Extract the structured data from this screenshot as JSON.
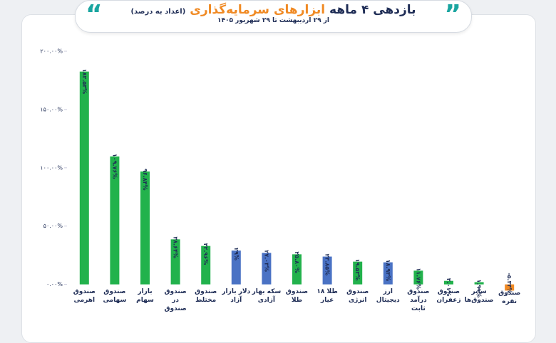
{
  "chart_data": {
    "type": "bar",
    "title": "بازدهی ۴ ماهه",
    "title_highlight": "ابزارهای سرمایه‌گذاری",
    "title_note": "(اعداد به درصد)",
    "subtitle": "از ۲۹ اردیبهشت تا ۲۹ شهریور ۱۴۰۵",
    "categories": [
      "صندوق اهرمی",
      "صندوق سهامی",
      "بازار سهام",
      "صندوق در صندوق",
      "صندوق مختلط",
      "دلار بازار آزاد",
      "سکه بهار آزادی",
      "صندوق طلا",
      "طلا ۱۸ عیار",
      "صندوق انرژی",
      "ارز دیجیتال",
      "صندوق درآمد ثابت",
      "صندوق زعفران",
      "سایر صندوق‌ها",
      "صندوق نقره"
    ],
    "values": [
      182.54,
      109.76,
      96.84,
      38.64,
      32.96,
      29,
      27.03,
      25.8,
      23.85,
      19.52,
      18.93,
      11.76,
      3.01,
      1.91,
      -5.34
    ],
    "value_labels": [
      "۱۸۲.۵۴%",
      "۱۰۹.۷۶%",
      "۹۶.۸۴%",
      "۳۸.۶۴%",
      "۳۲.۹۶%",
      "۲۹%",
      "۲۷.۰۳%",
      "۲۵.۸۰%",
      "۲۳.۸۵%",
      "۱۹.۵۲%",
      "۱۸.۹۳%",
      "۱۱.۷۶%",
      "۳.۰۱%",
      "۱.۹۱%",
      "-۵.۳۴%"
    ],
    "colors": [
      "#22b24c",
      "#22b24c",
      "#22b24c",
      "#22b24c",
      "#22b24c",
      "#4a72c4",
      "#4a72c4",
      "#22b24c",
      "#4a72c4",
      "#22b24c",
      "#4a72c4",
      "#22b24c",
      "#22b24c",
      "#22b24c",
      "#f08a24"
    ],
    "ylim": [
      -10,
      200
    ],
    "yticks": [
      {
        "value": 0,
        "label": "۰.۰۰%"
      },
      {
        "value": 50,
        "label": "۵۰.۰۰%"
      },
      {
        "value": 100,
        "label": "۱۰۰.۰۰%"
      },
      {
        "value": 150,
        "label": "۱۵۰.۰۰%"
      },
      {
        "value": 200,
        "label": "۲۰۰.۰۰%"
      }
    ]
  }
}
